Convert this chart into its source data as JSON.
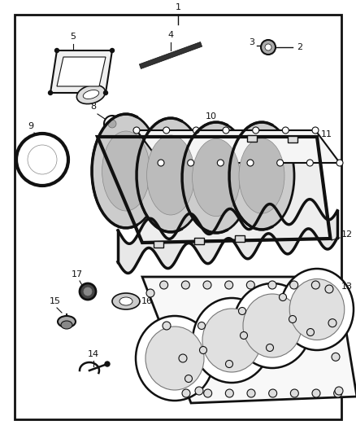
{
  "bg_color": "#ffffff",
  "border_color": "#1a1a1a",
  "fig_width": 4.38,
  "fig_height": 5.33,
  "dpi": 100,
  "lw_main": 2.0,
  "lw_thin": 1.2,
  "color_line": "#111111"
}
